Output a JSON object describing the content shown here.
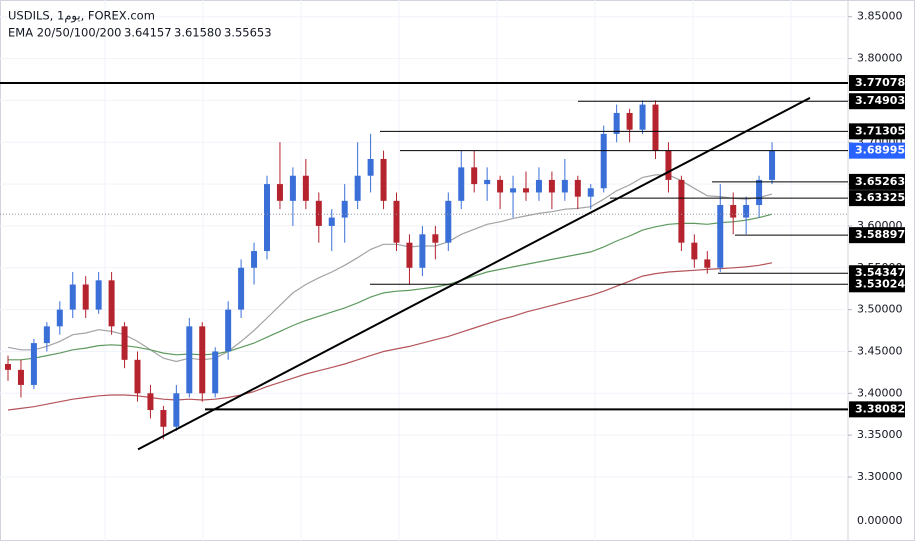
{
  "chart_data": {
    "type": "candlestick",
    "title": "USDILS, 1يوم, FOREX.com",
    "indicator": "EMA 20/50/100/200",
    "up_color": "#3a6fd8",
    "down_color": "#b5232e",
    "grid": true,
    "ylim": [
      3.245,
      3.87
    ],
    "yticks": [
      {
        "value": 3.85,
        "label": "3.85000"
      },
      {
        "value": 3.8,
        "label": "3.80000"
      },
      {
        "value": 3.75,
        "label": "3.75000"
      },
      {
        "value": 3.7,
        "label": "3.70000"
      },
      {
        "value": 3.65,
        "label": "3.65000"
      },
      {
        "value": 3.6,
        "label": "3.60000"
      },
      {
        "value": 3.55,
        "label": "3.55000"
      },
      {
        "value": 3.5,
        "label": "3.50000"
      },
      {
        "value": 3.45,
        "label": "3.45000"
      },
      {
        "value": 3.4,
        "label": "3.40000"
      },
      {
        "value": 3.35,
        "label": "3.35000"
      },
      {
        "value": 3.3,
        "label": "3.30000"
      }
    ],
    "bottom_axis_label": "0.00000",
    "candles": [
      [
        3.435,
        3.445,
        3.415,
        3.428
      ],
      [
        3.428,
        3.44,
        3.395,
        3.41
      ],
      [
        3.41,
        3.465,
        3.405,
        3.46
      ],
      [
        3.46,
        3.485,
        3.45,
        3.48
      ],
      [
        3.48,
        3.51,
        3.47,
        3.5
      ],
      [
        3.5,
        3.545,
        3.49,
        3.53
      ],
      [
        3.53,
        3.54,
        3.49,
        3.5
      ],
      [
        3.5,
        3.545,
        3.495,
        3.535
      ],
      [
        3.535,
        3.545,
        3.47,
        3.48
      ],
      [
        3.48,
        3.485,
        3.43,
        3.44
      ],
      [
        3.44,
        3.45,
        3.39,
        3.4
      ],
      [
        3.4,
        3.41,
        3.37,
        3.38
      ],
      [
        3.38,
        3.385,
        3.345,
        3.36
      ],
      [
        3.36,
        3.41,
        3.355,
        3.4
      ],
      [
        3.4,
        3.49,
        3.395,
        3.48
      ],
      [
        3.48,
        3.485,
        3.39,
        3.4
      ],
      [
        3.4,
        3.455,
        3.395,
        3.45
      ],
      [
        3.45,
        3.51,
        3.44,
        3.5
      ],
      [
        3.5,
        3.56,
        3.49,
        3.55
      ],
      [
        3.55,
        3.58,
        3.53,
        3.57
      ],
      [
        3.57,
        3.66,
        3.56,
        3.65
      ],
      [
        3.65,
        3.7,
        3.62,
        3.63
      ],
      [
        3.63,
        3.67,
        3.6,
        3.66
      ],
      [
        3.66,
        3.68,
        3.62,
        3.63
      ],
      [
        3.63,
        3.64,
        3.58,
        3.6
      ],
      [
        3.6,
        3.62,
        3.57,
        3.61
      ],
      [
        3.61,
        3.65,
        3.58,
        3.63
      ],
      [
        3.63,
        3.7,
        3.62,
        3.66
      ],
      [
        3.66,
        3.71,
        3.64,
        3.68
      ],
      [
        3.68,
        3.69,
        3.62,
        3.63
      ],
      [
        3.63,
        3.64,
        3.57,
        3.58
      ],
      [
        3.58,
        3.59,
        3.53,
        3.55
      ],
      [
        3.55,
        3.6,
        3.54,
        3.59
      ],
      [
        3.59,
        3.6,
        3.56,
        3.58
      ],
      [
        3.58,
        3.64,
        3.57,
        3.63
      ],
      [
        3.63,
        3.69,
        3.62,
        3.67
      ],
      [
        3.67,
        3.69,
        3.64,
        3.65
      ],
      [
        3.65,
        3.67,
        3.63,
        3.655
      ],
      [
        3.655,
        3.66,
        3.62,
        3.64
      ],
      [
        3.64,
        3.66,
        3.61,
        3.645
      ],
      [
        3.645,
        3.665,
        3.63,
        3.64
      ],
      [
        3.64,
        3.67,
        3.63,
        3.655
      ],
      [
        3.655,
        3.665,
        3.62,
        3.64
      ],
      [
        3.64,
        3.68,
        3.63,
        3.655
      ],
      [
        3.655,
        3.66,
        3.62,
        3.635
      ],
      [
        3.635,
        3.65,
        3.62,
        3.645
      ],
      [
        3.645,
        3.72,
        3.64,
        3.71
      ],
      [
        3.71,
        3.745,
        3.7,
        3.735
      ],
      [
        3.735,
        3.74,
        3.7,
        3.715
      ],
      [
        3.715,
        3.75,
        3.71,
        3.745
      ],
      [
        3.745,
        3.75,
        3.68,
        3.69
      ],
      [
        3.69,
        3.7,
        3.64,
        3.655
      ],
      [
        3.655,
        3.66,
        3.57,
        3.58
      ],
      [
        3.58,
        3.59,
        3.55,
        3.56
      ],
      [
        3.56,
        3.57,
        3.543,
        3.55
      ],
      [
        3.55,
        3.65,
        3.545,
        3.625
      ],
      [
        3.625,
        3.64,
        3.59,
        3.61
      ],
      [
        3.61,
        3.635,
        3.59,
        3.625
      ],
      [
        3.625,
        3.66,
        3.61,
        3.655
      ],
      [
        3.655,
        3.7,
        3.65,
        3.69
      ]
    ],
    "series": [
      {
        "name": "3.64157",
        "color": "#a3a3a3",
        "values": [
          3.455,
          3.452,
          3.452,
          3.456,
          3.462,
          3.47,
          3.472,
          3.476,
          3.474,
          3.47,
          3.462,
          3.452,
          3.442,
          3.438,
          3.442,
          3.44,
          3.442,
          3.45,
          3.462,
          3.475,
          3.49,
          3.505,
          3.52,
          3.53,
          3.538,
          3.545,
          3.553,
          3.562,
          3.572,
          3.578,
          3.578,
          3.575,
          3.576,
          3.576,
          3.581,
          3.59,
          3.596,
          3.602,
          3.605,
          3.609,
          3.612,
          3.615,
          3.617,
          3.62,
          3.621,
          3.623,
          3.632,
          3.642,
          3.649,
          3.658,
          3.661,
          3.661,
          3.654,
          3.645,
          3.636,
          3.635,
          3.633,
          3.632,
          3.634,
          3.638
        ]
      },
      {
        "name": "3.61580",
        "color": "#5e9a5e",
        "values": [
          3.44,
          3.44,
          3.442,
          3.445,
          3.448,
          3.452,
          3.454,
          3.457,
          3.458,
          3.457,
          3.455,
          3.452,
          3.448,
          3.446,
          3.447,
          3.446,
          3.447,
          3.45,
          3.455,
          3.46,
          3.467,
          3.474,
          3.481,
          3.487,
          3.492,
          3.497,
          3.502,
          3.508,
          3.515,
          3.52,
          3.522,
          3.523,
          3.525,
          3.527,
          3.53,
          3.535,
          3.54,
          3.545,
          3.548,
          3.551,
          3.554,
          3.557,
          3.56,
          3.563,
          3.566,
          3.569,
          3.575,
          3.582,
          3.588,
          3.595,
          3.599,
          3.602,
          3.603,
          3.603,
          3.602,
          3.604,
          3.605,
          3.607,
          3.61,
          3.614
        ]
      },
      {
        "name": "3.55653",
        "color": "#b5545a",
        "values": [
          3.38,
          3.382,
          3.384,
          3.387,
          3.39,
          3.393,
          3.395,
          3.397,
          3.398,
          3.398,
          3.397,
          3.395,
          3.393,
          3.392,
          3.393,
          3.392,
          3.393,
          3.395,
          3.398,
          3.402,
          3.408,
          3.413,
          3.418,
          3.423,
          3.427,
          3.431,
          3.435,
          3.44,
          3.445,
          3.45,
          3.453,
          3.456,
          3.46,
          3.464,
          3.468,
          3.473,
          3.478,
          3.483,
          3.488,
          3.492,
          3.497,
          3.501,
          3.505,
          3.509,
          3.513,
          3.517,
          3.522,
          3.528,
          3.534,
          3.54,
          3.543,
          3.545,
          3.546,
          3.547,
          3.548,
          3.549,
          3.55,
          3.551,
          3.553,
          3.556
        ]
      }
    ],
    "levels": [
      3.77078,
      3.74903,
      3.71305,
      3.68995,
      3.65263,
      3.63325,
      3.58897,
      3.54347,
      3.53024,
      3.38082
    ],
    "trendline": [
      3.333,
      3.753
    ]
  }
}
